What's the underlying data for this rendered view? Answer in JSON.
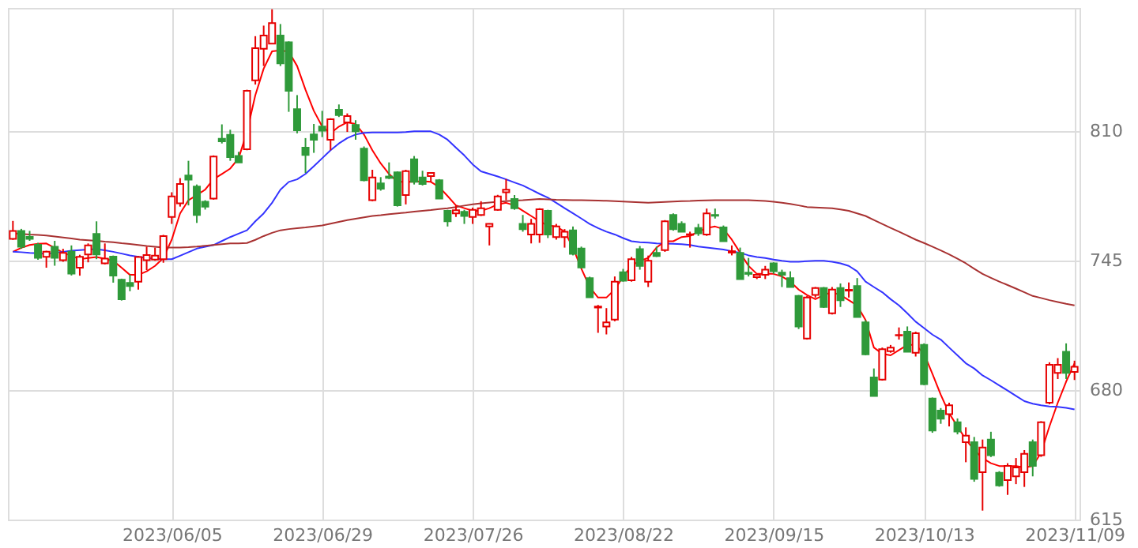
{
  "chart_data": {
    "type": "candlestick",
    "categories": [
      null,
      null,
      null,
      null,
      null,
      null,
      null,
      null,
      null,
      null,
      null,
      null,
      null,
      null,
      null,
      null,
      null,
      null,
      null,
      "2023/06/05",
      null,
      null,
      null,
      null,
      null,
      null,
      null,
      null,
      null,
      null,
      null,
      null,
      null,
      null,
      null,
      null,
      null,
      "2023/06/29",
      null,
      null,
      null,
      null,
      null,
      null,
      null,
      null,
      null,
      null,
      null,
      null,
      null,
      null,
      null,
      null,
      null,
      "2023/07/26",
      null,
      null,
      null,
      null,
      null,
      null,
      null,
      null,
      null,
      null,
      null,
      null,
      null,
      null,
      null,
      null,
      null,
      "2023/08/22",
      null,
      null,
      null,
      null,
      null,
      null,
      null,
      null,
      null,
      null,
      null,
      null,
      null,
      null,
      null,
      null,
      null,
      "2023/09/15",
      null,
      null,
      null,
      null,
      null,
      null,
      null,
      null,
      null,
      null,
      null,
      null,
      null,
      null,
      null,
      null,
      null,
      "2023/10/13",
      null,
      null,
      null,
      null,
      null,
      null,
      null,
      null,
      null,
      null,
      null,
      null,
      null,
      null,
      null,
      null,
      null,
      "2023/11/09"
    ],
    "ohlc": [
      [
        756,
        765,
        755.5,
        760
      ],
      [
        760,
        761,
        751,
        752
      ],
      [
        757,
        760,
        755,
        756
      ],
      [
        753,
        754,
        745.5,
        746.5
      ],
      [
        747,
        750,
        741.5,
        749.5
      ],
      [
        752,
        755,
        742.5,
        746.5
      ],
      [
        745.3,
        751,
        744.5,
        749
      ],
      [
        749.5,
        752.7,
        737.6,
        738.5
      ],
      [
        741.5,
        748,
        737.5,
        747
      ],
      [
        748.2,
        753.7,
        744.2,
        752.7
      ],
      [
        758.5,
        764.8,
        745.8,
        748.2
      ],
      [
        743.7,
        753.7,
        743.2,
        746.1
      ],
      [
        747.1,
        747.6,
        734,
        737.6
      ],
      [
        735.5,
        736,
        725,
        725.7
      ],
      [
        733.9,
        738,
        729.7,
        732.3
      ],
      [
        734.5,
        747.4,
        730.5,
        746.9
      ],
      [
        745.3,
        752.1,
        740.3,
        747.9
      ],
      [
        745.6,
        751.6,
        745,
        747.6
      ],
      [
        745.8,
        758,
        744,
        757.4
      ],
      [
        767,
        779.4,
        763.5,
        777.3
      ],
      [
        773.8,
        786.5,
        772.2,
        783.6
      ],
      [
        787.8,
        795.2,
        772.8,
        785.7
      ],
      [
        782.3,
        783.3,
        764,
        768
      ],
      [
        774.6,
        775.4,
        770.7,
        772.2
      ],
      [
        776.2,
        797.9,
        775.7,
        797.3
      ],
      [
        806.3,
        813.5,
        803.9,
        805
      ],
      [
        808.2,
        810.8,
        795.2,
        797
      ],
      [
        797.6,
        799.7,
        794.4,
        794.4
      ],
      [
        801,
        830.9,
        800.5,
        830.4
      ],
      [
        835.6,
        857.8,
        833.5,
        851.8
      ],
      [
        851.5,
        863.1,
        842.8,
        858.1
      ],
      [
        854.1,
        871.3,
        853.9,
        864.4
      ],
      [
        858.1,
        863.9,
        842.8,
        844.1
      ],
      [
        854.7,
        855.2,
        819.8,
        830.4
      ],
      [
        821.1,
        828.2,
        809,
        810.5
      ],
      [
        801.8,
        806.6,
        789.1,
        798.1
      ],
      [
        808.4,
        813.7,
        799.2,
        805.8
      ],
      [
        812.4,
        820.3,
        807.1,
        810.3
      ],
      [
        805.8,
        816.6,
        800.5,
        816.1
      ],
      [
        820.8,
        823.5,
        817.2,
        818.2
      ],
      [
        814.5,
        819,
        809.7,
        817.7
      ],
      [
        813.2,
        815.6,
        805.8,
        810
      ],
      [
        801.3,
        802.4,
        784.9,
        785.4
      ],
      [
        775.4,
        790.7,
        774.9,
        786.8
      ],
      [
        783.9,
        787,
        780.2,
        781.2
      ],
      [
        787.3,
        794.4,
        786,
        786.6
      ],
      [
        789.4,
        789.9,
        772.2,
        772.8
      ],
      [
        778,
        790.7,
        773.3,
        790
      ],
      [
        796,
        797.6,
        783.3,
        784.6
      ],
      [
        786.8,
        790.2,
        782.8,
        783.6
      ],
      [
        787.5,
        789.1,
        784.6,
        789.1
      ],
      [
        785.4,
        786,
        776,
        776.2
      ],
      [
        770.1,
        770.6,
        762.2,
        764.8
      ],
      [
        768.8,
        772.8,
        767,
        770.4
      ],
      [
        769.6,
        770.6,
        763.5,
        767.5
      ],
      [
        767,
        771.7,
        763.5,
        770.6
      ],
      [
        768,
        774.9,
        767.5,
        771.4
      ],
      [
        762.2,
        763.8,
        752.7,
        763.5
      ],
      [
        770.6,
        778.1,
        770.1,
        777.3
      ],
      [
        779.4,
        786,
        775.4,
        780.7
      ],
      [
        776,
        778,
        770.6,
        771.4
      ],
      [
        763.5,
        768,
        759.6,
        760.9
      ],
      [
        758.2,
        766,
        753.7,
        763.5
      ],
      [
        758.2,
        771.4,
        754,
        770.9
      ],
      [
        770.1,
        770.6,
        756.4,
        758.2
      ],
      [
        756.9,
        763.5,
        755.6,
        762.2
      ],
      [
        756.9,
        760.9,
        751.6,
        759.6
      ],
      [
        760.3,
        762.2,
        747.7,
        748.5
      ],
      [
        751.1,
        752.1,
        741.1,
        741.6
      ],
      [
        736.3,
        737,
        726.5,
        726.6
      ],
      [
        721.5,
        722.8,
        708.8,
        722
      ],
      [
        712,
        721.2,
        708,
        714.1
      ],
      [
        715.4,
        737.1,
        714.6,
        734.5
      ],
      [
        739.2,
        740.9,
        734.5,
        735
      ],
      [
        735.2,
        746.9,
        734.5,
        745.8
      ],
      [
        750.8,
        752.4,
        740.5,
        742.4
      ],
      [
        734.5,
        747.6,
        731.8,
        745
      ],
      [
        749,
        752.1,
        746.9,
        747.4
      ],
      [
        750.3,
        765.4,
        749.5,
        764.8
      ],
      [
        768,
        768.8,
        760.1,
        760.9
      ],
      [
        763.5,
        764.8,
        759.6,
        759.6
      ],
      [
        758,
        759.6,
        751.6,
        758.3
      ],
      [
        761.4,
        763.5,
        757.5,
        758.8
      ],
      [
        758.2,
        771.2,
        757.5,
        768.8
      ],
      [
        768,
        771.2,
        766.2,
        767.6
      ],
      [
        761.7,
        762.7,
        754.8,
        754.8
      ],
      [
        749.1,
        752.7,
        747.7,
        749.8
      ],
      [
        749,
        751.6,
        735.8,
        735.8
      ],
      [
        739,
        746.4,
        737.1,
        738.4
      ],
      [
        736.8,
        738.4,
        735.8,
        737.9
      ],
      [
        737.9,
        742.4,
        735.8,
        740.5
      ],
      [
        743.7,
        744.2,
        738.4,
        739.7
      ],
      [
        739,
        740.5,
        731.8,
        737.9
      ],
      [
        736.3,
        739.7,
        731.8,
        731.8
      ],
      [
        727.3,
        727.8,
        710.7,
        712
      ],
      [
        705.9,
        727.3,
        705.4,
        726.5
      ],
      [
        727.8,
        731.8,
        726.5,
        731.3
      ],
      [
        731.3,
        731.8,
        721.3,
        721.8
      ],
      [
        718.6,
        731.8,
        718,
        730.5
      ],
      [
        731.3,
        733.6,
        721.8,
        725.2
      ],
      [
        730,
        734.1,
        726.5,
        730.4
      ],
      [
        732.3,
        736.3,
        716.6,
        716.7
      ],
      [
        714.1,
        715.2,
        697.5,
        698
      ],
      [
        686.4,
        690.9,
        677.1,
        677.1
      ],
      [
        685.3,
        701.4,
        684.8,
        700.6
      ],
      [
        699.6,
        702.7,
        698.8,
        701.4
      ],
      [
        707.5,
        711.5,
        705.4,
        707.7
      ],
      [
        709.4,
        712,
        699.3,
        699.3
      ],
      [
        698.8,
        709.4,
        696.9,
        708.6
      ],
      [
        702.7,
        703.5,
        682.5,
        683
      ],
      [
        675.8,
        676.3,
        658.6,
        659.7
      ],
      [
        669.7,
        671,
        663.1,
        665.7
      ],
      [
        667.9,
        673.7,
        661.8,
        672.4
      ],
      [
        663.9,
        665.8,
        657.8,
        659.2
      ],
      [
        653.9,
        661.3,
        643.8,
        657.1
      ],
      [
        653.9,
        656.5,
        634,
        635.4
      ],
      [
        638.8,
        655.2,
        619.5,
        651.2
      ],
      [
        655.2,
        659.1,
        646.4,
        647.3
      ],
      [
        638.5,
        639.3,
        631.5,
        632.2
      ],
      [
        634.8,
        643.3,
        627.4,
        642
      ],
      [
        636.7,
        645.9,
        632.8,
        641.2
      ],
      [
        638.8,
        649.9,
        631.4,
        648
      ],
      [
        653.9,
        655.2,
        636.7,
        642
      ],
      [
        647.3,
        664.4,
        646.5,
        663.9
      ],
      [
        673.7,
        694,
        672.9,
        692.7
      ],
      [
        688.7,
        696.1,
        685.6,
        692.7
      ],
      [
        699.3,
        703.5,
        685.6,
        688.7
      ],
      [
        689.2,
        694.8,
        685.1,
        691.7
      ]
    ],
    "series": [
      {
        "type": "line",
        "color": "#ff0000",
        "values": [
          749.5,
          751.5,
          752.9,
          753.5,
          753.7,
          751.5,
          749,
          747.5,
          745.8,
          746.4,
          746.9,
          746,
          745,
          741.5,
          737.9,
          737.9,
          739.7,
          742.4,
          746.4,
          755.6,
          768.8,
          775.4,
          778,
          780.7,
          786,
          788.6,
          791.3,
          796.5,
          809.7,
          828.2,
          841.5,
          850.2,
          850.7,
          850,
          842.8,
          830.9,
          820.3,
          812.4,
          809,
          812.4,
          814.5,
          813.7,
          808.4,
          800.5,
          793.9,
          788.6,
          784.6,
          784.6,
          784.6,
          784.9,
          784.6,
          782,
          777.5,
          772.8,
          771.4,
          770.1,
          770.1,
          771.4,
          773.3,
          774.1,
          772.8,
          770.1,
          767.5,
          764.8,
          762.7,
          762.2,
          759.6,
          751.6,
          741.1,
          731.8,
          726.5,
          726.5,
          730.5,
          737.1,
          742.4,
          745,
          746.4,
          751.6,
          754.8,
          754.8,
          756.9,
          757.4,
          759.6,
          761.4,
          762.2,
          760.9,
          755.6,
          749,
          742.4,
          738.4,
          738.4,
          738.4,
          737.1,
          734.5,
          730.5,
          727.8,
          725.7,
          727.8,
          729.2,
          727.8,
          725.2,
          722.5,
          715.2,
          701.4,
          698.3,
          697.5,
          700.1,
          702.7,
          702.7,
          698.3,
          688.2,
          677.7,
          668.4,
          661.8,
          655.2,
          649.9,
          645.9,
          643.3,
          641.9,
          641.9,
          641.9,
          641.2,
          641.9,
          648.6,
          661.8,
          673.7,
          684.3,
          693.5
        ]
      },
      {
        "type": "line",
        "color": "#3333ff",
        "values": [
          749.5,
          749.3,
          749,
          748.8,
          748.5,
          749,
          749.5,
          750,
          750.3,
          750.6,
          750.8,
          750.2,
          749.5,
          748.6,
          747.7,
          747,
          746.4,
          746,
          745.8,
          745.8,
          747.5,
          749.3,
          751.1,
          752,
          752.9,
          754.9,
          756.9,
          758.6,
          760.3,
          764.8,
          768.8,
          774.1,
          780.7,
          784.6,
          785.9,
          788.6,
          792.5,
          796.5,
          800.5,
          803.9,
          806.6,
          808.4,
          809.2,
          809.4,
          809.4,
          809.4,
          809.4,
          809.6,
          810,
          810,
          810,
          808.4,
          805.8,
          801.8,
          797.9,
          793.4,
          789.9,
          788.6,
          787.3,
          785.9,
          784.3,
          782.8,
          780.7,
          778.6,
          776.7,
          774.1,
          771.4,
          768.8,
          766.2,
          763.5,
          761.4,
          759.6,
          758.2,
          756.4,
          754.8,
          754.3,
          754.1,
          753.7,
          753.6,
          753.5,
          753.3,
          752.9,
          752.1,
          751.6,
          751.1,
          750.6,
          749.8,
          749,
          747.7,
          746.9,
          746.4,
          745.6,
          745,
          744.5,
          744.5,
          744.8,
          745,
          745,
          744.5,
          743.7,
          742.4,
          739.7,
          734.5,
          731.8,
          729.2,
          725.7,
          722.6,
          718.6,
          714.4,
          711.2,
          707.9,
          705.4,
          701.4,
          697.5,
          693.5,
          690.9,
          687.4,
          685,
          682.4,
          679.8,
          677.1,
          674.5,
          673.2,
          672.4,
          671.8,
          671.6,
          671.1,
          670.3
        ]
      },
      {
        "type": "line",
        "color": "#a83232",
        "values": [
          758.8,
          758.5,
          758.2,
          758,
          757.7,
          757.2,
          756.7,
          756.2,
          755.6,
          755.3,
          755,
          754.6,
          754.3,
          753.8,
          753.4,
          752.9,
          752.4,
          752,
          751.6,
          751.6,
          751.6,
          751.8,
          752.1,
          752.5,
          752.9,
          753.3,
          753.7,
          753.7,
          753.9,
          755.5,
          757.4,
          759,
          760.3,
          760.9,
          761.3,
          761.7,
          762.2,
          762.7,
          763.6,
          764.5,
          765.4,
          766.1,
          766.8,
          767.5,
          767.9,
          768.4,
          768.8,
          769.2,
          769.7,
          770.1,
          770.5,
          771,
          771.4,
          772,
          772.7,
          773.3,
          773.8,
          774.2,
          774.6,
          774.9,
          775.2,
          775.4,
          775.7,
          776,
          775.8,
          775.6,
          775.5,
          775.4,
          775.4,
          775.3,
          775.2,
          775.1,
          774.9,
          774.7,
          774.5,
          774.3,
          774.1,
          774.3,
          774.5,
          774.7,
          774.9,
          775,
          775.2,
          775.3,
          775.4,
          775.4,
          775.4,
          775.4,
          775.4,
          775.2,
          775,
          774.6,
          774.1,
          773.5,
          772.8,
          772,
          771.8,
          771.6,
          771.4,
          770.8,
          770.1,
          768.8,
          767.5,
          765.5,
          763.5,
          761.5,
          759.6,
          757.6,
          755.6,
          753.9,
          752.1,
          750.2,
          748.2,
          746,
          743.7,
          741,
          738.4,
          736.4,
          734.5,
          732.8,
          731,
          729.2,
          727.3,
          726.3,
          725.2,
          724.3,
          723.4,
          722.6
        ]
      }
    ],
    "ylim": [
      615,
      872
    ],
    "yticks": [
      615,
      680,
      745,
      810
    ],
    "grid": true
  }
}
